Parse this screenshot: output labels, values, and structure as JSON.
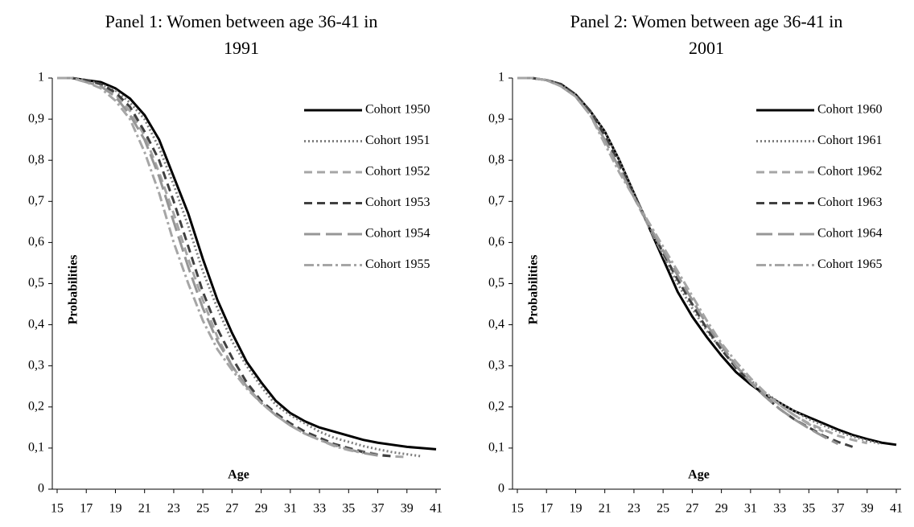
{
  "chart_data": [
    {
      "type": "line",
      "title": "Panel 1: Women between age 36-41 in 1991",
      "x_label": "Age",
      "y_label": "Probabilities",
      "x": [
        15,
        16,
        17,
        18,
        19,
        20,
        21,
        22,
        23,
        24,
        25,
        26,
        27,
        28,
        29,
        30,
        31,
        32,
        33,
        34,
        35,
        36,
        37,
        38,
        39,
        40,
        41
      ],
      "xlim": [
        15,
        41
      ],
      "xticks": [
        15,
        17,
        19,
        21,
        23,
        25,
        27,
        29,
        31,
        33,
        35,
        37,
        39,
        41
      ],
      "ylim": [
        0,
        1
      ],
      "yticks": [
        0,
        {
          "value": 0.1,
          "label": "0,1"
        },
        {
          "value": 0.2,
          "label": "0,2"
        },
        {
          "value": 0.3,
          "label": "0,3"
        },
        {
          "value": 0.4,
          "label": "0,4"
        },
        {
          "value": 0.5,
          "label": "0,5"
        },
        {
          "value": 0.6,
          "label": "0,6"
        },
        {
          "value": 0.7,
          "label": "0,7"
        },
        {
          "value": 0.8,
          "label": "0,8"
        },
        {
          "value": 0.9,
          "label": "0,9"
        },
        1
      ],
      "grid": false,
      "legend": "top-right",
      "series": [
        {
          "name": "Cohort 1950",
          "color": "#000000",
          "dash": "solid",
          "values": [
            1,
            1,
            0.995,
            0.99,
            0.975,
            0.95,
            0.91,
            0.85,
            0.76,
            0.67,
            0.56,
            0.46,
            0.38,
            0.31,
            0.26,
            0.215,
            0.185,
            0.165,
            0.15,
            0.14,
            0.13,
            0.12,
            0.113,
            0.108,
            0.103,
            0.1,
            0.097
          ]
        },
        {
          "name": "Cohort 1951",
          "color": "#7f7f7f",
          "dash": "dotted",
          "values": [
            1,
            1,
            0.995,
            0.985,
            0.97,
            0.94,
            0.9,
            0.83,
            0.74,
            0.64,
            0.53,
            0.44,
            0.36,
            0.3,
            0.25,
            0.205,
            0.18,
            0.16,
            0.14,
            0.125,
            0.115,
            0.105,
            0.097,
            0.09,
            0.085,
            0.08,
            null
          ]
        },
        {
          "name": "Cohort 1952",
          "color": "#a6a6a6",
          "dash": "dashed",
          "values": [
            1,
            1,
            0.995,
            0.985,
            0.96,
            0.92,
            0.86,
            0.77,
            0.67,
            0.56,
            0.46,
            0.37,
            0.3,
            0.25,
            0.21,
            0.18,
            0.16,
            0.14,
            0.125,
            0.11,
            0.1,
            0.092,
            0.085,
            0.08,
            0.078,
            null,
            null
          ]
        },
        {
          "name": "Cohort 1953",
          "color": "#404040",
          "dash": "dashed",
          "values": [
            1,
            1,
            0.995,
            0.985,
            0.965,
            0.93,
            0.87,
            0.8,
            0.7,
            0.59,
            0.48,
            0.39,
            0.32,
            0.26,
            0.215,
            0.185,
            0.16,
            0.14,
            0.125,
            0.11,
            0.1,
            0.09,
            0.083,
            0.08,
            null,
            null,
            null
          ]
        },
        {
          "name": "Cohort 1954",
          "color": "#969696",
          "dash": "long-dash",
          "values": [
            1,
            1,
            0.99,
            0.98,
            0.955,
            0.91,
            0.85,
            0.76,
            0.65,
            0.54,
            0.44,
            0.36,
            0.3,
            0.25,
            0.21,
            0.18,
            0.155,
            0.135,
            0.12,
            0.107,
            0.097,
            0.088,
            0.082,
            null,
            null,
            null,
            null
          ]
        },
        {
          "name": "Cohort 1955",
          "color": "#a6a6a6",
          "dash": "dash-dot",
          "values": [
            1,
            1,
            0.99,
            0.975,
            0.945,
            0.9,
            0.82,
            0.72,
            0.6,
            0.5,
            0.41,
            0.34,
            0.29,
            0.245,
            0.21,
            0.18,
            0.155,
            0.135,
            0.12,
            0.105,
            0.095,
            0.088,
            null,
            null,
            null,
            null,
            null
          ]
        }
      ]
    },
    {
      "type": "line",
      "title": "Panel 2: Women between age 36-41 in 2001",
      "x_label": "Age",
      "y_label": "Probabilities",
      "x": [
        15,
        16,
        17,
        18,
        19,
        20,
        21,
        22,
        23,
        24,
        25,
        26,
        27,
        28,
        29,
        30,
        31,
        32,
        33,
        34,
        35,
        36,
        37,
        38,
        39,
        40,
        41
      ],
      "xlim": [
        15,
        41
      ],
      "xticks": [
        15,
        17,
        19,
        21,
        23,
        25,
        27,
        29,
        31,
        33,
        35,
        37,
        39,
        41
      ],
      "ylim": [
        0,
        1
      ],
      "yticks": [
        0,
        {
          "value": 0.1,
          "label": "0,1"
        },
        {
          "value": 0.2,
          "label": "0,2"
        },
        {
          "value": 0.3,
          "label": "0,3"
        },
        {
          "value": 0.4,
          "label": "0,4"
        },
        {
          "value": 0.5,
          "label": "0,5"
        },
        {
          "value": 0.6,
          "label": "0,6"
        },
        {
          "value": 0.7,
          "label": "0,7"
        },
        {
          "value": 0.8,
          "label": "0,8"
        },
        {
          "value": 0.9,
          "label": "0,9"
        },
        1
      ],
      "grid": false,
      "legend": "top-right",
      "series": [
        {
          "name": "Cohort 1960",
          "color": "#000000",
          "dash": "solid",
          "values": [
            1,
            1,
            0.995,
            0.985,
            0.96,
            0.92,
            0.87,
            0.8,
            0.72,
            0.64,
            0.56,
            0.48,
            0.42,
            0.37,
            0.325,
            0.285,
            0.255,
            0.23,
            0.21,
            0.19,
            0.175,
            0.16,
            0.145,
            0.132,
            0.122,
            0.113,
            0.108
          ]
        },
        {
          "name": "Cohort 1961",
          "color": "#7f7f7f",
          "dash": "dotted",
          "values": [
            1,
            1,
            0.995,
            0.985,
            0.96,
            0.92,
            0.87,
            0.8,
            0.72,
            0.645,
            0.57,
            0.5,
            0.44,
            0.385,
            0.34,
            0.3,
            0.265,
            0.235,
            0.21,
            0.19,
            0.17,
            0.155,
            0.14,
            0.128,
            0.118,
            0.11,
            null
          ]
        },
        {
          "name": "Cohort 1962",
          "color": "#a6a6a6",
          "dash": "dashed",
          "values": [
            1,
            1,
            0.995,
            0.985,
            0.955,
            0.91,
            0.85,
            0.78,
            0.71,
            0.64,
            0.57,
            0.51,
            0.45,
            0.39,
            0.34,
            0.3,
            0.26,
            0.23,
            0.205,
            0.18,
            0.16,
            0.145,
            0.13,
            0.12,
            0.112,
            null,
            null
          ]
        },
        {
          "name": "Cohort 1963",
          "color": "#404040",
          "dash": "dashed",
          "values": [
            1,
            1,
            0.995,
            0.985,
            0.96,
            0.92,
            0.86,
            0.79,
            0.715,
            0.645,
            0.575,
            0.51,
            0.45,
            0.39,
            0.34,
            0.295,
            0.26,
            0.225,
            0.195,
            0.17,
            0.15,
            0.13,
            0.115,
            0.103,
            null,
            null,
            null
          ]
        },
        {
          "name": "Cohort 1964",
          "color": "#969696",
          "dash": "long-dash",
          "values": [
            1,
            1,
            0.995,
            0.98,
            0.955,
            0.91,
            0.85,
            0.78,
            0.71,
            0.645,
            0.58,
            0.52,
            0.46,
            0.4,
            0.35,
            0.3,
            0.26,
            0.225,
            0.195,
            0.17,
            0.148,
            0.128,
            0.11,
            null,
            null,
            null,
            null
          ]
        },
        {
          "name": "Cohort 1965",
          "color": "#a6a6a6",
          "dash": "dash-dot",
          "values": [
            1,
            1,
            0.995,
            0.98,
            0.955,
            0.91,
            0.84,
            0.77,
            0.71,
            0.65,
            0.59,
            0.53,
            0.47,
            0.41,
            0.355,
            0.31,
            0.27,
            0.235,
            0.205,
            0.18,
            0.158,
            0.14,
            null,
            null,
            null,
            null,
            null
          ]
        }
      ]
    }
  ]
}
